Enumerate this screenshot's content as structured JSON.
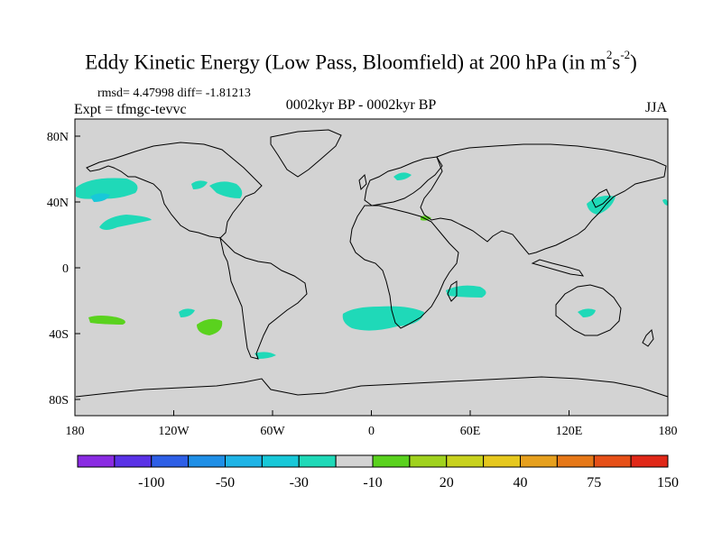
{
  "title": {
    "main": "Eddy Kinetic Energy (Low Pass, Bloomfield) at 200 hPa (in m",
    "sup1": "2",
    "mid": "s",
    "sup2": "-2",
    "end": ")"
  },
  "stats": "rmsd= 4.47998 diff= -1.81213",
  "expt": "Expt = tfmgc-tevvc",
  "period": "0002kyr BP - 0002kyr BP",
  "season": "JJA",
  "map": {
    "lon_ticks": [
      "180",
      "120W",
      "60W",
      "0",
      "60E",
      "120E",
      "180"
    ],
    "lat_ticks": [
      "80N",
      "40N",
      "0",
      "40S",
      "80S"
    ],
    "land_color": "#d3d3d3",
    "coast_color": "#000000"
  },
  "chart_data": {
    "type": "heatmap",
    "lon_range": [
      -180,
      180
    ],
    "lat_range": [
      -90,
      90
    ],
    "colorbar": {
      "labels": [
        "-100",
        "-50",
        "-30",
        "-10",
        "20",
        "40",
        "75",
        "150"
      ],
      "colors": [
        "#8a2be2",
        "#5a32e6",
        "#2e5fe6",
        "#1f8fe6",
        "#1fb4e6",
        "#18c8d8",
        "#1fd9b8",
        "#d3d3d3",
        "#5ad21e",
        "#a0d21e",
        "#c8d21e",
        "#e6c81e",
        "#e6a01e",
        "#e67818",
        "#e65018",
        "#e02818"
      ]
    },
    "anomalies": [
      {
        "lon": -170,
        "lat": 42,
        "category": "-10",
        "color": "#1fd9b8"
      },
      {
        "lon": -160,
        "lat": 28,
        "category": "-10",
        "color": "#1fd9b8"
      },
      {
        "lon": -170,
        "lat": 40,
        "category": "-30",
        "color": "#18c8d8"
      },
      {
        "lon": -88,
        "lat": 48,
        "category": "-10",
        "color": "#1fd9b8"
      },
      {
        "lon": -102,
        "lat": 52,
        "category": "-10",
        "color": "#1fd9b8"
      },
      {
        "lon": 20,
        "lat": 55,
        "category": "-10",
        "color": "#1fd9b8"
      },
      {
        "lon": 33,
        "lat": 30,
        "category": "20",
        "color": "#5ad21e"
      },
      {
        "lon": 140,
        "lat": 38,
        "category": "-10",
        "color": "#1fd9b8"
      },
      {
        "lon": 178,
        "lat": 40,
        "category": "-10",
        "color": "#1fd9b8"
      },
      {
        "lon": -155,
        "lat": -30,
        "category": "20",
        "color": "#5ad21e"
      },
      {
        "lon": -110,
        "lat": -27,
        "category": "-10",
        "color": "#1fd9b8"
      },
      {
        "lon": -95,
        "lat": -35,
        "category": "20",
        "color": "#5ad21e"
      },
      {
        "lon": 0,
        "lat": -30,
        "category": "-10",
        "color": "#1fd9b8"
      },
      {
        "lon": 57,
        "lat": -13,
        "category": "-10",
        "color": "#1fd9b8"
      },
      {
        "lon": 140,
        "lat": -27,
        "category": "-10",
        "color": "#1fd9b8"
      },
      {
        "lon": -65,
        "lat": -52,
        "category": "-10",
        "color": "#1fd9b8"
      }
    ]
  }
}
